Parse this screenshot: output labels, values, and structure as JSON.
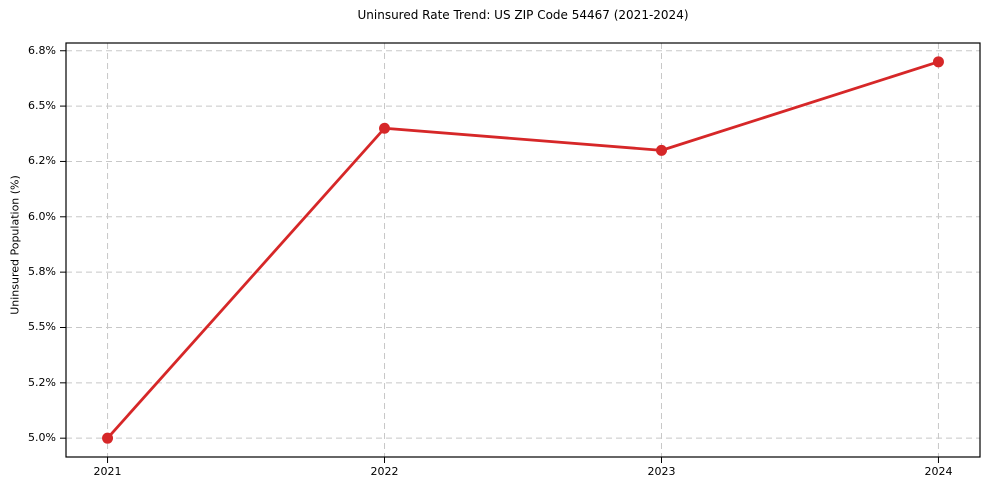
{
  "chart_data": {
    "type": "line",
    "title": "Uninsured Rate Trend: US ZIP Code 54467 (2021-2024)",
    "xlabel": "",
    "ylabel": "Uninsured Population (%)",
    "x": [
      2021,
      2022,
      2023,
      2024
    ],
    "series": [
      {
        "name": "Uninsured Rate",
        "values": [
          5.0,
          6.4,
          6.3,
          6.7
        ]
      }
    ],
    "xtick_labels": [
      "2021",
      "2022",
      "2023",
      "2024"
    ],
    "ytick_values": [
      5.0,
      5.25,
      5.5,
      5.75,
      6.0,
      6.25,
      6.5,
      6.75
    ],
    "ytick_labels": [
      "5.0%",
      "5.2%",
      "5.5%",
      "5.8%",
      "6.0%",
      "6.2%",
      "6.5%",
      "6.8%"
    ],
    "ylim": [
      4.915,
      6.785
    ],
    "xlim": [
      2020.85,
      2024.15
    ],
    "grid": true,
    "legend": "none",
    "line_color": "#d62728",
    "grid_color": "#c8c8c8",
    "frame_color": "#000000",
    "text_color": "#000000"
  }
}
